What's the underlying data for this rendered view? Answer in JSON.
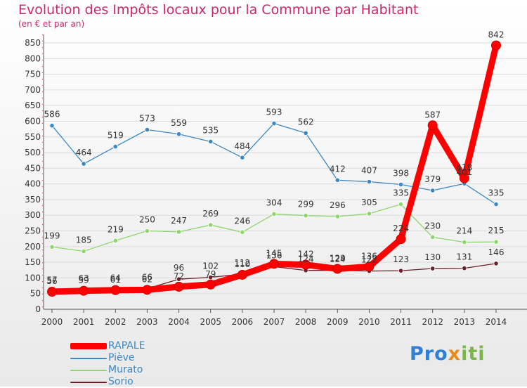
{
  "title": "Evolution des Impôts locaux pour la Commune par Habitant",
  "subtitle": "(en € et par an)",
  "logo": {
    "p1": "Pro",
    "p2": "x",
    "p3": "iti"
  },
  "chart_data": {
    "type": "line",
    "x": [
      2000,
      2001,
      2002,
      2003,
      2004,
      2005,
      2006,
      2007,
      2008,
      2009,
      2010,
      2011,
      2012,
      2013,
      2014
    ],
    "ylim": [
      0,
      850
    ],
    "yticks": [
      0,
      50,
      100,
      150,
      200,
      250,
      300,
      350,
      400,
      450,
      500,
      550,
      600,
      650,
      700,
      750,
      800,
      850
    ],
    "grid": "horizontal",
    "legend_position": "bottom-left",
    "series": [
      {
        "name": "RAPALE",
        "color": "#ff0000",
        "values": [
          56,
          59,
          61,
          62,
          72,
          79,
          110,
          145,
          142,
          129,
          136,
          224,
          587,
          418,
          842
        ]
      },
      {
        "name": "Piève",
        "color": "#3b88c4",
        "values": [
          586,
          464,
          519,
          573,
          559,
          535,
          484,
          593,
          562,
          412,
          407,
          398,
          379,
          401,
          335
        ]
      },
      {
        "name": "Murato",
        "color": "#8ed66b",
        "values": [
          199,
          185,
          219,
          250,
          247,
          269,
          246,
          304,
          299,
          296,
          305,
          335,
          230,
          214,
          215
        ]
      },
      {
        "name": "Sorio",
        "color": "#6b1f28",
        "values": [
          57,
          63,
          64,
          66,
          96,
          102,
          112,
          136,
          124,
          124,
          122,
          123,
          130,
          131,
          146
        ]
      }
    ]
  }
}
